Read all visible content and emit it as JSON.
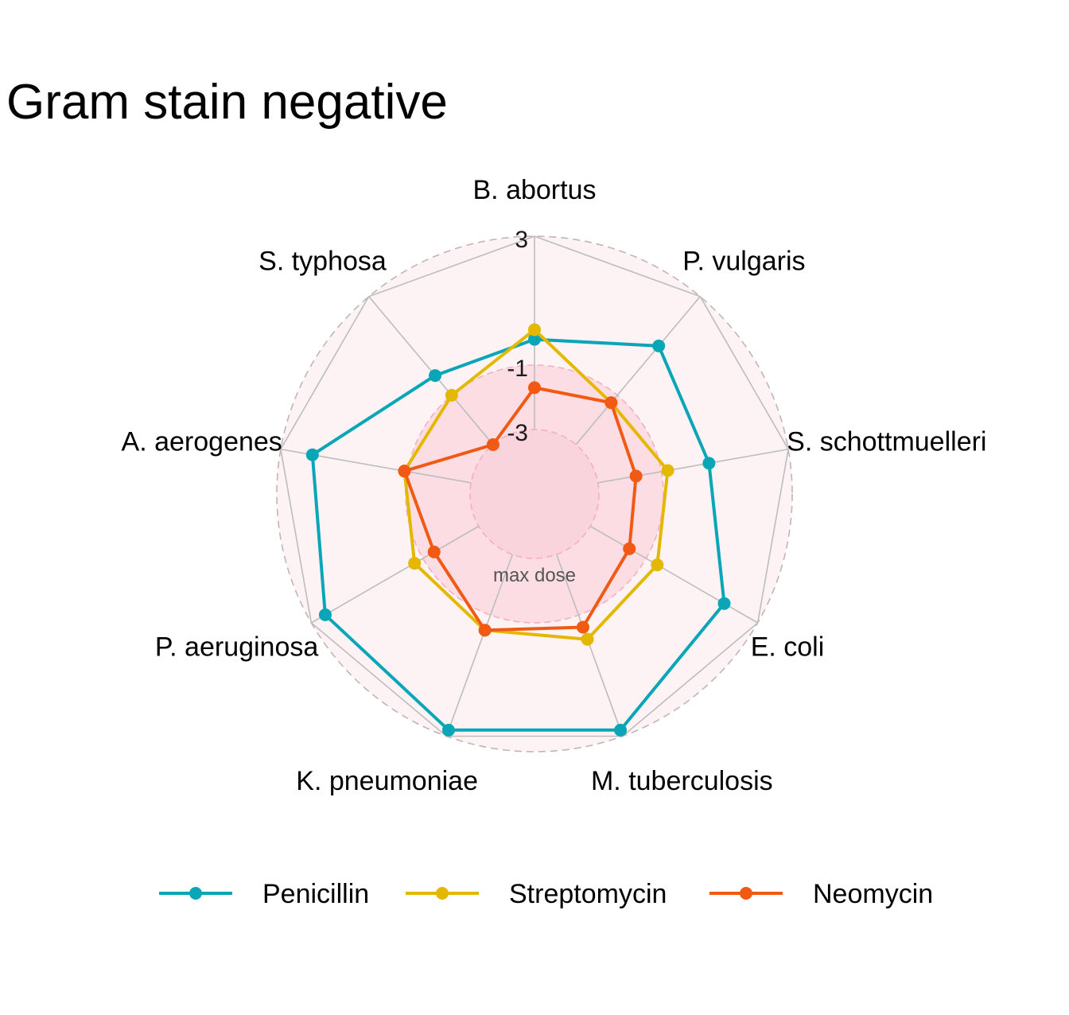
{
  "chart_data": {
    "type": "radar",
    "title": "Gram stain negative",
    "categories": [
      "B. abortus",
      "P. vulgaris",
      "S. schottmuelleri",
      "E. coli",
      "M. tuberculosis",
      "K. pneumoniae",
      "P. aeruginosa",
      "A. aerogenes",
      "S. typhosa"
    ],
    "radial_ticks": [
      "3",
      "-1",
      "-3"
    ],
    "radial_ticks_values": [
      3,
      -1,
      -3
    ],
    "rlim": [
      -5,
      3
    ],
    "center_label": "max dose",
    "series": [
      {
        "name": "Penicillin",
        "color": "#0AA6B8",
        "values": [
          -0.2,
          1.0,
          0.5,
          1.8,
          2.8,
          2.8,
          2.5,
          2.0,
          -0.2
        ]
      },
      {
        "name": "Streptomycin",
        "color": "#E5B800",
        "values": [
          0.1,
          -1.3,
          -0.8,
          -0.6,
          -0.2,
          -0.5,
          -0.7,
          -0.9,
          -1.0
        ]
      },
      {
        "name": "Neomycin",
        "color": "#F05A14",
        "values": [
          -1.7,
          -1.3,
          -1.8,
          -1.6,
          -0.6,
          -0.5,
          -1.4,
          -0.9,
          -3.0
        ]
      }
    ],
    "legend_position": "bottom"
  }
}
